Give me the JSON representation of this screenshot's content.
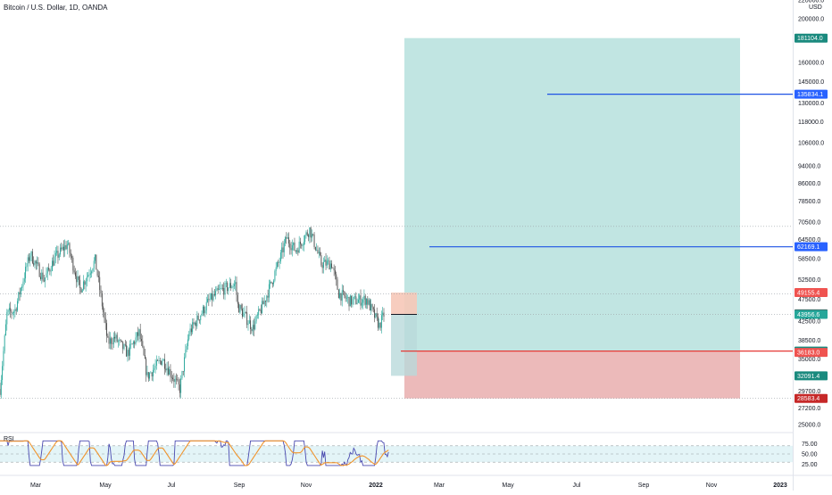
{
  "title": "Bitcoin / U.S. Dollar, 1D, OANDA",
  "currency": "USD",
  "rsi_label": "RSI",
  "colors": {
    "up": "#26a69a",
    "down": "#4a4a4a",
    "target_zone": "#b2dfdb",
    "stop_zone": "#e6a3a3",
    "entry_zone": "#f6c8b8",
    "blue_line": "#1e53e5",
    "red_line": "#e53935",
    "rsi_line": "#4a4ab0",
    "rsi_ma": "#f0932b",
    "grid": "#d8d8d8"
  },
  "chart_data": [
    {
      "type": "candlestick",
      "title": "Bitcoin / U.S. Dollar, 1D, OANDA",
      "x_tick_labels": [
        "Mar",
        "May",
        "Jul",
        "Sep",
        "Nov",
        "2022",
        "Mar",
        "May",
        "Jul",
        "Sep",
        "Nov",
        "2023"
      ],
      "y_scale": "log",
      "y_tick_labels": [
        "220000.0",
        "200000.0",
        "160000.0",
        "145000.0",
        "130000.0",
        "118000.0",
        "106000.0",
        "94000.0",
        "86000.0",
        "78500.0",
        "70500.0",
        "64500.0",
        "58500.0",
        "52500.0",
        "47500.0",
        "42500.0",
        "38500.0",
        "35000.0",
        "29700.0",
        "27200.0",
        "25000.0"
      ],
      "ohlc_path": [
        [
          "2021-02-15",
          30000
        ],
        [
          "2021-02-21",
          44000
        ],
        [
          "2021-02-28",
          45000
        ],
        [
          "2021-03-13",
          60000
        ],
        [
          "2021-03-25",
          52500
        ],
        [
          "2021-04-03",
          58500
        ],
        [
          "2021-04-14",
          63000
        ],
        [
          "2021-04-20",
          55500
        ],
        [
          "2021-04-25",
          50000
        ],
        [
          "2021-05-08",
          58000
        ],
        [
          "2021-05-12",
          50000
        ],
        [
          "2021-05-19",
          38000
        ],
        [
          "2021-05-25",
          39000
        ],
        [
          "2021-06-05",
          36000
        ],
        [
          "2021-06-15",
          40000
        ],
        [
          "2021-06-22",
          32000
        ],
        [
          "2021-07-05",
          35000
        ],
        [
          "2021-07-20",
          30000
        ],
        [
          "2021-07-28",
          40000
        ],
        [
          "2021-08-14",
          47000
        ],
        [
          "2021-08-23",
          49500
        ],
        [
          "2021-09-06",
          51500
        ],
        [
          "2021-09-08",
          46000
        ],
        [
          "2021-09-21",
          41000
        ],
        [
          "2021-10-01",
          47000
        ],
        [
          "2021-10-14",
          58000
        ],
        [
          "2021-10-20",
          65000
        ],
        [
          "2021-10-28",
          61000
        ],
        [
          "2021-11-09",
          68000
        ],
        [
          "2021-11-19",
          57000
        ],
        [
          "2021-11-28",
          57000
        ],
        [
          "2021-12-04",
          49000
        ],
        [
          "2021-12-14",
          47000
        ],
        [
          "2021-12-28",
          47500
        ],
        [
          "2022-01-08",
          41500
        ],
        [
          "2022-01-12",
          43900
        ]
      ],
      "horizontal_levels": [
        {
          "label": "181104.0",
          "value": 181104.0
        },
        {
          "label": "135834.1",
          "value": 135834.1
        },
        {
          "label": "62169.1",
          "value": 62169.1
        },
        {
          "label": "49155.4",
          "value": 49155.4
        },
        {
          "label": "44083.8",
          "value": 44083.8
        },
        {
          "label": "43956.6",
          "value": 43956.6
        },
        {
          "label": "36429.7",
          "value": 36429.7
        },
        {
          "label": "36183.0",
          "value": 36183.0
        },
        {
          "label": "32091.4",
          "value": 32091.4
        },
        {
          "label": "28583.4",
          "value": 28583.4
        }
      ],
      "reference_dotted": [
        69000,
        48800,
        44000,
        28583.4
      ]
    },
    {
      "type": "line",
      "title": "RSI",
      "y_tick_labels": [
        "75.00",
        "50.00",
        "25.00"
      ],
      "band": [
        30,
        70
      ]
    }
  ]
}
